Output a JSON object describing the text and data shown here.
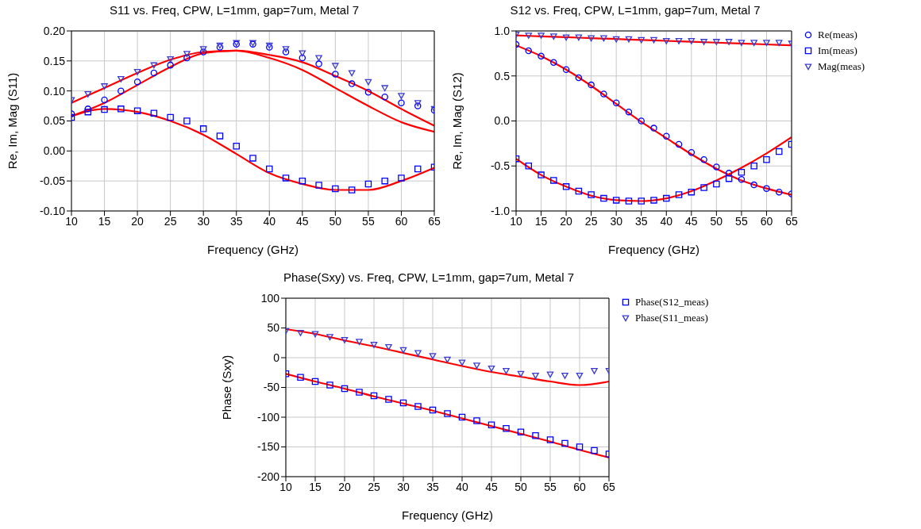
{
  "chart_data": [
    {
      "type": "scatter",
      "title": "S11 vs. Freq, CPW, L=1mm, gap=7um, Metal 7",
      "xlabel": "Frequency (GHz)",
      "ylabel": "Re, Im, Mag (S11)",
      "xlim": [
        10,
        65
      ],
      "xticks": [
        10,
        15,
        20,
        25,
        30,
        35,
        40,
        45,
        50,
        55,
        60,
        65
      ],
      "ylim": [
        -0.1,
        0.2
      ],
      "yticks": [
        {
          "value": -0.1,
          "label": "-0.10"
        },
        {
          "value": -0.05,
          "label": "-0.05"
        },
        {
          "value": 0,
          "label": "0.00"
        },
        {
          "value": 0.05,
          "label": "0.05"
        },
        {
          "value": 0.1,
          "label": "0.10"
        },
        {
          "value": 0.15,
          "label": "0.15"
        },
        {
          "value": 0.2,
          "label": "0.20"
        }
      ],
      "grid": true,
      "legend": false,
      "series": [
        {
          "type": "scatter",
          "marker": "circle",
          "color": "#0000ff",
          "x": [
            10,
            12.5,
            15,
            17.5,
            20,
            22.5,
            25,
            27.5,
            30,
            32.5,
            35,
            37.5,
            40,
            42.5,
            45,
            47.5,
            50,
            52.5,
            55,
            57.5,
            60,
            62.5,
            65
          ],
          "values": [
            0.062,
            0.07,
            0.085,
            0.1,
            0.115,
            0.13,
            0.143,
            0.155,
            0.165,
            0.173,
            0.178,
            0.178,
            0.173,
            0.165,
            0.155,
            0.145,
            0.128,
            0.112,
            0.098,
            0.09,
            0.08,
            0.075,
            0.068
          ]
        },
        {
          "type": "scatter",
          "marker": "square",
          "color": "#0000ff",
          "x": [
            10,
            12.5,
            15,
            17.5,
            20,
            22.5,
            25,
            27.5,
            30,
            32.5,
            35,
            37.5,
            40,
            42.5,
            45,
            47.5,
            50,
            52.5,
            55,
            57.5,
            60,
            62.5,
            65
          ],
          "values": [
            0.056,
            0.065,
            0.069,
            0.07,
            0.067,
            0.063,
            0.056,
            0.05,
            0.037,
            0.025,
            0.008,
            -0.012,
            -0.03,
            -0.045,
            -0.05,
            -0.057,
            -0.063,
            -0.065,
            -0.055,
            -0.05,
            -0.045,
            -0.03,
            -0.027
          ]
        },
        {
          "type": "scatter",
          "marker": "triangle",
          "color": "#3a3ad0",
          "x": [
            10,
            12.5,
            15,
            17.5,
            20,
            22.5,
            25,
            27.5,
            30,
            32.5,
            35,
            37.5,
            40,
            42.5,
            45,
            47.5,
            50,
            52.5,
            55,
            57.5,
            60,
            62.5,
            65
          ],
          "values": [
            0.085,
            0.095,
            0.108,
            0.12,
            0.132,
            0.143,
            0.153,
            0.162,
            0.17,
            0.176,
            0.18,
            0.18,
            0.176,
            0.17,
            0.163,
            0.155,
            0.142,
            0.13,
            0.115,
            0.105,
            0.092,
            0.08,
            0.07
          ]
        },
        {
          "type": "line",
          "color": "#ff0000",
          "x": [
            10,
            15,
            20,
            25,
            30,
            35,
            40,
            45,
            50,
            55,
            60,
            65
          ],
          "values": [
            0.08,
            0.105,
            0.13,
            0.152,
            0.165,
            0.167,
            0.16,
            0.148,
            0.125,
            0.1,
            0.07,
            0.042
          ]
        },
        {
          "type": "line",
          "color": "#ff0000",
          "x": [
            10,
            15,
            20,
            25,
            30,
            35,
            40,
            45,
            50,
            55,
            60,
            65
          ],
          "values": [
            0.058,
            0.08,
            0.11,
            0.14,
            0.163,
            0.167,
            0.155,
            0.135,
            0.105,
            0.075,
            0.048,
            0.032
          ]
        },
        {
          "type": "line",
          "color": "#ff0000",
          "x": [
            10,
            15,
            20,
            25,
            30,
            35,
            40,
            45,
            50,
            55,
            60,
            65
          ],
          "values": [
            0.058,
            0.07,
            0.065,
            0.05,
            0.027,
            -0.005,
            -0.037,
            -0.055,
            -0.065,
            -0.065,
            -0.05,
            -0.028
          ]
        }
      ]
    },
    {
      "type": "scatter",
      "title": "S12 vs. Freq, CPW, L=1mm, gap=7um, Metal 7",
      "xlabel": "Frequency (GHz)",
      "ylabel": "Re, Im, Mag (S12)",
      "xlim": [
        10,
        65
      ],
      "xticks": [
        10,
        15,
        20,
        25,
        30,
        35,
        40,
        45,
        50,
        55,
        60,
        65
      ],
      "ylim": [
        -1,
        1
      ],
      "yticks": [
        {
          "value": -1,
          "label": "-1.0"
        },
        {
          "value": -0.5,
          "label": "-0.5"
        },
        {
          "value": 0,
          "label": "0.0"
        },
        {
          "value": 0.5,
          "label": "0.5"
        },
        {
          "value": 1,
          "label": "1.0"
        }
      ],
      "grid": true,
      "legend": "right",
      "series": [
        {
          "type": "scatter",
          "name": "Re(meas)",
          "marker": "circle",
          "color": "#0000ff",
          "x": [
            10,
            12.5,
            15,
            17.5,
            20,
            22.5,
            25,
            27.5,
            30,
            32.5,
            35,
            37.5,
            40,
            42.5,
            45,
            47.5,
            50,
            52.5,
            55,
            57.5,
            60,
            62.5,
            65
          ],
          "values": [
            0.85,
            0.78,
            0.72,
            0.65,
            0.57,
            0.48,
            0.4,
            0.3,
            0.2,
            0.1,
            0.0,
            -0.08,
            -0.17,
            -0.26,
            -0.35,
            -0.43,
            -0.51,
            -0.58,
            -0.65,
            -0.71,
            -0.75,
            -0.79,
            -0.81
          ]
        },
        {
          "type": "scatter",
          "name": "Im(meas)",
          "marker": "square",
          "color": "#0000ff",
          "x": [
            10,
            12.5,
            15,
            17.5,
            20,
            22.5,
            25,
            27.5,
            30,
            32.5,
            35,
            37.5,
            40,
            42.5,
            45,
            47.5,
            50,
            52.5,
            55,
            57.5,
            60,
            62.5,
            65
          ],
          "values": [
            -0.42,
            -0.5,
            -0.6,
            -0.66,
            -0.73,
            -0.78,
            -0.82,
            -0.86,
            -0.88,
            -0.89,
            -0.89,
            -0.88,
            -0.86,
            -0.82,
            -0.79,
            -0.74,
            -0.7,
            -0.64,
            -0.57,
            -0.5,
            -0.43,
            -0.34,
            -0.26
          ]
        },
        {
          "type": "scatter",
          "name": "Mag(meas)",
          "marker": "triangle",
          "color": "#3a3ad0",
          "x": [
            10,
            12.5,
            15,
            17.5,
            20,
            22.5,
            25,
            27.5,
            30,
            32.5,
            35,
            37.5,
            40,
            42.5,
            45,
            47.5,
            50,
            52.5,
            55,
            57.5,
            60,
            62.5,
            65
          ],
          "values": [
            0.96,
            0.95,
            0.95,
            0.94,
            0.93,
            0.93,
            0.92,
            0.92,
            0.91,
            0.91,
            0.9,
            0.9,
            0.89,
            0.89,
            0.89,
            0.88,
            0.88,
            0.88,
            0.87,
            0.87,
            0.87,
            0.87,
            0.86
          ]
        },
        {
          "type": "line",
          "color": "#ff0000",
          "x": [
            10,
            15,
            20,
            25,
            30,
            35,
            40,
            45,
            50,
            55,
            60,
            65
          ],
          "values": [
            0.95,
            0.94,
            0.93,
            0.92,
            0.91,
            0.9,
            0.89,
            0.88,
            0.87,
            0.86,
            0.85,
            0.84
          ]
        },
        {
          "type": "line",
          "color": "#ff0000",
          "x": [
            10,
            15,
            20,
            25,
            30,
            35,
            40,
            45,
            50,
            55,
            60,
            65
          ],
          "values": [
            0.84,
            0.72,
            0.57,
            0.39,
            0.19,
            -0.01,
            -0.19,
            -0.37,
            -0.53,
            -0.66,
            -0.75,
            -0.82
          ]
        },
        {
          "type": "line",
          "color": "#ff0000",
          "x": [
            10,
            15,
            20,
            25,
            30,
            35,
            40,
            45,
            50,
            55,
            60,
            65
          ],
          "values": [
            -0.42,
            -0.6,
            -0.73,
            -0.83,
            -0.88,
            -0.89,
            -0.86,
            -0.78,
            -0.66,
            -0.52,
            -0.36,
            -0.18
          ]
        }
      ]
    },
    {
      "type": "scatter",
      "title": "Phase(Sxy) vs. Freq, CPW, L=1mm, gap=7um, Metal 7",
      "xlabel": "Frequency (GHz)",
      "ylabel": "Phase (Sxy)",
      "xlim": [
        10,
        65
      ],
      "xticks": [
        10,
        15,
        20,
        25,
        30,
        35,
        40,
        45,
        50,
        55,
        60,
        65
      ],
      "ylim": [
        -200,
        100
      ],
      "yticks": [
        -200,
        -150,
        -100,
        -50,
        0,
        50,
        100
      ],
      "grid": true,
      "legend": "right",
      "series": [
        {
          "type": "scatter",
          "name": "Phase(S12_meas)",
          "marker": "square",
          "color": "#0000ff",
          "x": [
            10,
            12.5,
            15,
            17.5,
            20,
            22.5,
            25,
            27.5,
            30,
            32.5,
            35,
            37.5,
            40,
            42.5,
            45,
            47.5,
            50,
            52.5,
            55,
            57.5,
            60,
            62.5,
            65
          ],
          "values": [
            -27,
            -33,
            -40,
            -46,
            -52,
            -58,
            -64,
            -70,
            -76,
            -82,
            -88,
            -94,
            -100,
            -106,
            -113,
            -119,
            -125,
            -131,
            -138,
            -144,
            -150,
            -156,
            -162
          ]
        },
        {
          "type": "scatter",
          "name": "Phase(S11_meas)",
          "marker": "triangle",
          "color": "#3a3ad0",
          "x": [
            10,
            12.5,
            15,
            17.5,
            20,
            22.5,
            25,
            27.5,
            30,
            32.5,
            35,
            37.5,
            40,
            42.5,
            45,
            47.5,
            50,
            52.5,
            55,
            57.5,
            60,
            62.5,
            65
          ],
          "values": [
            45,
            42,
            40,
            35,
            30,
            27,
            22,
            18,
            13,
            8,
            3,
            -3,
            -8,
            -13,
            -18,
            -22,
            -27,
            -30,
            -28,
            -30,
            -30,
            -22,
            -22
          ]
        },
        {
          "type": "line",
          "color": "#ff0000",
          "x": [
            10,
            15,
            20,
            25,
            30,
            35,
            40,
            45,
            50,
            55,
            60,
            65
          ],
          "values": [
            48,
            40,
            29,
            19,
            8,
            -3,
            -14,
            -24,
            -32,
            -40,
            -46,
            -40
          ]
        },
        {
          "type": "line",
          "color": "#ff0000",
          "x": [
            10,
            15,
            20,
            25,
            30,
            35,
            40,
            45,
            50,
            55,
            60,
            65
          ],
          "values": [
            -27,
            -40,
            -52,
            -65,
            -77,
            -89,
            -102,
            -115,
            -128,
            -141,
            -155,
            -168
          ]
        }
      ]
    }
  ]
}
